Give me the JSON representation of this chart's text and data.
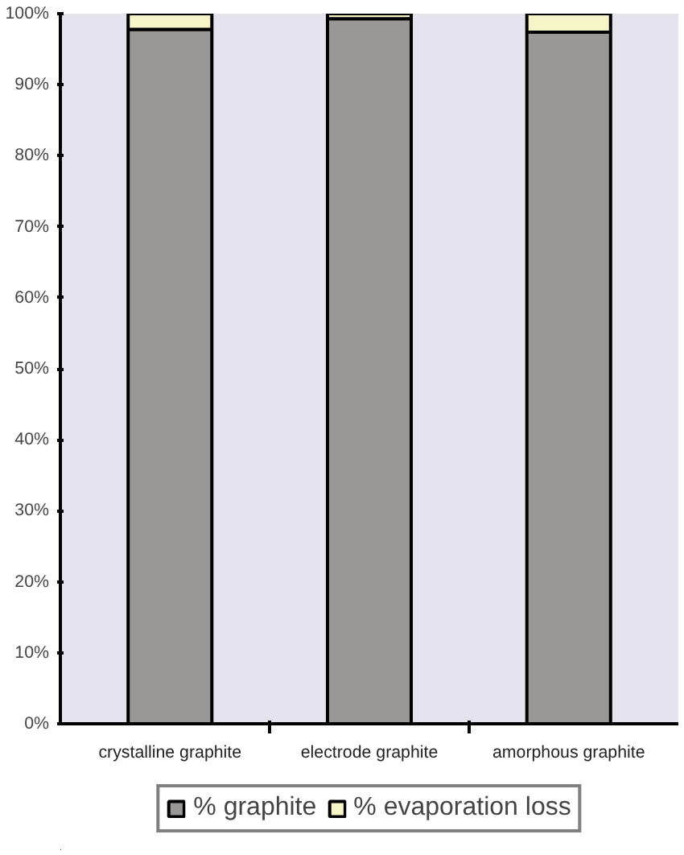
{
  "chart_data": {
    "type": "bar",
    "stacked": true,
    "categories": [
      "crystalline graphite",
      "electrode graphite",
      "amorphous graphite"
    ],
    "series": [
      {
        "name": "% graphite",
        "color": "#9a9896",
        "values": [
          97.8,
          99.3,
          97.4
        ]
      },
      {
        "name": "% evaporation loss",
        "color": "#f6f5c8",
        "values": [
          2.2,
          0.7,
          2.6
        ]
      }
    ],
    "ylim": [
      0,
      100
    ],
    "yticks": [
      {
        "value": 0,
        "label": "0%"
      },
      {
        "value": 10,
        "label": "10%"
      },
      {
        "value": 20,
        "label": "20%"
      },
      {
        "value": 30,
        "label": "30%"
      },
      {
        "value": 40,
        "label": "40%"
      },
      {
        "value": 50,
        "label": "50%"
      },
      {
        "value": 60,
        "label": "60%"
      },
      {
        "value": 70,
        "label": "70%"
      },
      {
        "value": 80,
        "label": "80%"
      },
      {
        "value": 90,
        "label": "90%"
      },
      {
        "value": 100,
        "label": "100%"
      }
    ],
    "grid": false,
    "legend": "bottom"
  }
}
